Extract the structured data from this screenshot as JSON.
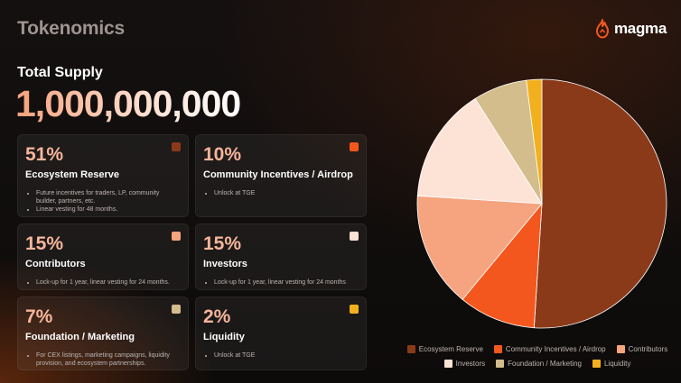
{
  "header": {
    "title": "Tokenomics",
    "logo_text": "magma"
  },
  "supply": {
    "label": "Total Supply",
    "value": "1,000,000,000"
  },
  "cards": [
    {
      "percent": "51%",
      "name": "Ecosystem Reserve",
      "color": "#8b3a19",
      "bullets": [
        "Future incentives for traders, LP, community builder, partners, etc.",
        "Linear vesting for 48 months."
      ]
    },
    {
      "percent": "10%",
      "name": "Community Incentives / Airdrop",
      "color": "#f4571e",
      "bullets": [
        "Unlock at TGE"
      ]
    },
    {
      "percent": "15%",
      "name": "Contributors",
      "color": "#f5a47f",
      "bullets": [
        "Lock-up for 1 year, linear vesting for 24 months."
      ]
    },
    {
      "percent": "15%",
      "name": "Investors",
      "color": "#fde3d6",
      "bullets": [
        "Lock-up for 1 year, linear vesting for 24 months"
      ]
    },
    {
      "percent": "7%",
      "name": "Foundation / Marketing",
      "color": "#d3bd8c",
      "bullets": [
        "For CEX listings, marketing campaigns, liquidity provision, and ecosystem partnerships."
      ]
    },
    {
      "percent": "2%",
      "name": "Liquidity",
      "color": "#f2b01e",
      "bullets": [
        "Unlock at TGE"
      ]
    }
  ],
  "chart_data": {
    "type": "pie",
    "categories": [
      "Ecosystem Reserve",
      "Community Incentives / Airdrop",
      "Contributors",
      "Investors",
      "Foundation / Marketing",
      "Liquidity"
    ],
    "values": [
      51,
      10,
      15,
      15,
      7,
      2
    ],
    "colors": [
      "#8b3a19",
      "#f4571e",
      "#f5a47f",
      "#fde3d6",
      "#d3bd8c",
      "#f2b01e"
    ],
    "legend_position": "bottom"
  }
}
